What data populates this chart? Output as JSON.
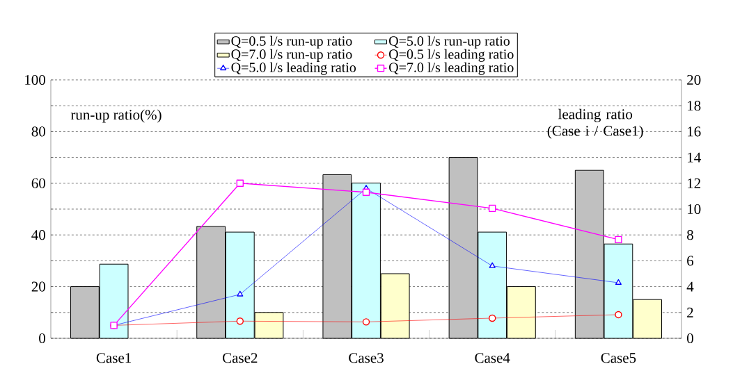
{
  "chart_data": {
    "type": "bar",
    "categories": [
      "Case1",
      "Case2",
      "Case3",
      "Case4",
      "Case5"
    ],
    "series": [
      {
        "name": "Q=0.5 l/s run-up ratio",
        "color": "#c0c0c0",
        "values": [
          20,
          43.3,
          63.3,
          70,
          65
        ]
      },
      {
        "name": "Q=5.0 l/s run-up ratio",
        "color": "#ccffff",
        "values": [
          28.7,
          41.1,
          60.1,
          41.1,
          36.5
        ]
      },
      {
        "name": "Q=7.0 l/s run-up ratio",
        "color": "#ffffcc",
        "values": [
          null,
          10,
          25,
          20,
          15
        ]
      },
      {
        "name": "Q=0.5 l/s leading ratio",
        "type": "line",
        "axis": "y2",
        "marker": "circle",
        "color": "#ff0000",
        "values": [
          1,
          1.33,
          1.27,
          1.56,
          1.83
        ]
      },
      {
        "name": "Q=5.0 l/s leading ratio",
        "type": "line",
        "axis": "y2",
        "marker": "triangle",
        "color": "#0000ff",
        "values": [
          1,
          3.4,
          11.6,
          5.6,
          4.3
        ]
      },
      {
        "name": "Q=7.0 l/s leading ratio",
        "type": "line",
        "axis": "y2",
        "marker": "square",
        "color": "#ff00ff",
        "values": [
          1,
          12,
          11.3,
          10.06,
          7.64
        ]
      }
    ],
    "ylabel": "run-up ratio(%)",
    "y2label": "leading ratio (Case i / Case1)",
    "ylim": [
      0,
      100
    ],
    "yticks": [
      0,
      {
        "value": 10,
        "label": null
      },
      20,
      {
        "value": 30,
        "label": null
      },
      40,
      {
        "value": 50,
        "label": null
      },
      60,
      {
        "value": 70,
        "label": null
      },
      80,
      {
        "value": 90,
        "label": null
      },
      100
    ],
    "y2lim": [
      0,
      20
    ],
    "y2ticks": [
      0,
      2,
      4,
      6,
      8,
      10,
      12,
      14,
      16,
      18,
      20
    ],
    "grid": "y",
    "legend": "top"
  }
}
